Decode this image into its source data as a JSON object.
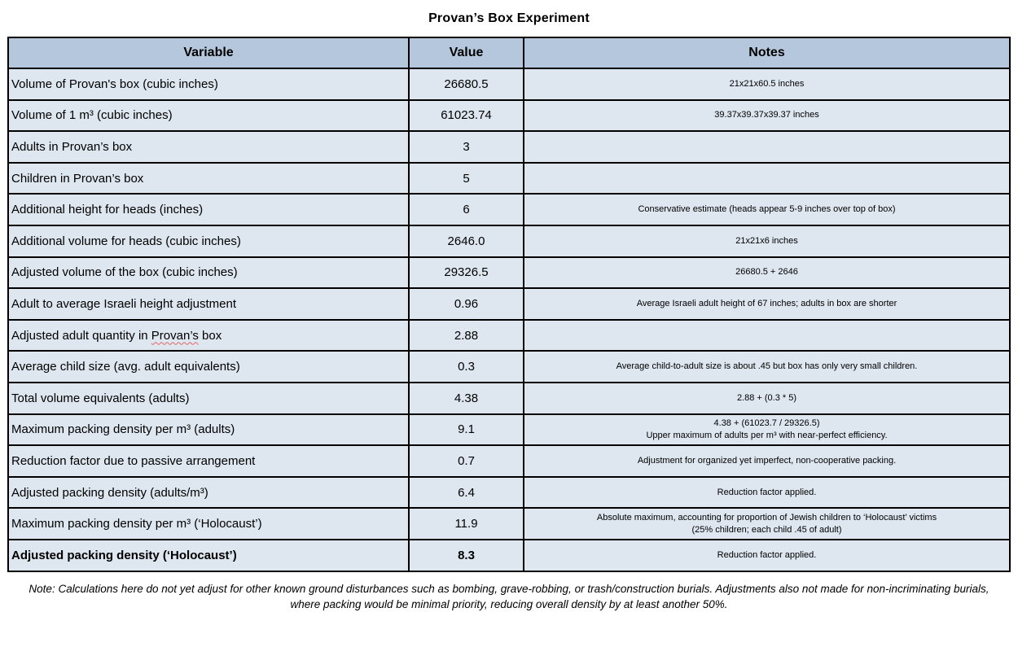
{
  "title": "Provan’s Box Experiment",
  "colors": {
    "header_bg": "#b4c7dc",
    "row_bg": "#dee6ef",
    "border": "#000000",
    "spellcheck_underline": "#e06666"
  },
  "table": {
    "headers": [
      "Variable",
      "Value",
      "Notes"
    ],
    "rows": [
      {
        "variable": "Volume of Provan's box (cubic inches)",
        "value": "26680.5",
        "notes": "21x21x60.5 inches"
      },
      {
        "variable": "Volume of 1 m³ (cubic inches)",
        "value": "61023.74",
        "notes": "39.37x39.37x39.37 inches"
      },
      {
        "variable": "Adults in Provan’s box",
        "value": "3",
        "notes": ""
      },
      {
        "variable": "Children in Provan’s box",
        "value": "5",
        "notes": ""
      },
      {
        "variable": "Additional height for heads (inches)",
        "value": "6",
        "notes": "Conservative estimate (heads appear 5-9 inches over top of box)"
      },
      {
        "variable": "Additional volume for heads (cubic inches)",
        "value": "2646.0",
        "notes": "21x21x6 inches"
      },
      {
        "variable": "Adjusted volume of the box (cubic inches)",
        "value": "29326.5",
        "notes": "26680.5 + 2646"
      },
      {
        "variable": "Adult to average Israeli height adjustment",
        "value": "0.96",
        "notes": "Average Israeli adult height of 67 inches; adults in box are shorter"
      },
      {
        "variable": "Adjusted adult quantity in Provan’s box",
        "variable_pre": "Adjusted adult quantity in ",
        "misspelled_word": "Provan’s",
        "variable_post": " box",
        "value": "2.88",
        "notes": ""
      },
      {
        "variable": "Average child size (avg. adult equivalents)",
        "value": "0.3",
        "notes": "Average child-to-adult size is about .45 but box has only very small children."
      },
      {
        "variable": "Total volume equivalents (adults)",
        "value": "4.38",
        "notes": "2.88 + (0.3 * 5)"
      },
      {
        "variable": "Maximum packing density per m³ (adults)",
        "value": "9.1",
        "notes": "4.38 + (61023.7 / 29326.5)\nUpper maximum of adults per m³ with near-perfect efficiency."
      },
      {
        "variable": "Reduction factor due to passive arrangement",
        "value": "0.7",
        "notes": "Adjustment for organized yet imperfect, non-cooperative packing."
      },
      {
        "variable": "Adjusted packing density (adults/m³)",
        "value": "6.4",
        "notes": "Reduction factor applied."
      },
      {
        "variable": "Maximum packing density per m³ (‘Holocaust’)",
        "value": "11.9",
        "notes": "Absolute maximum, accounting for proportion of Jewish children to ‘Holocaust’ victims\n(25% children; each child .45 of adult)"
      },
      {
        "variable": "Adjusted packing density (‘Holocaust’)",
        "value": "8.3",
        "notes": "Reduction factor applied."
      }
    ]
  },
  "footnote": "Note: Calculations here do not yet adjust for other known ground disturbances such as bombing, grave-robbing, or trash/construction burials.  Adjustments also not made for non-incriminating burials, where packing would be minimal priority, reducing overall density by at least another 50%."
}
